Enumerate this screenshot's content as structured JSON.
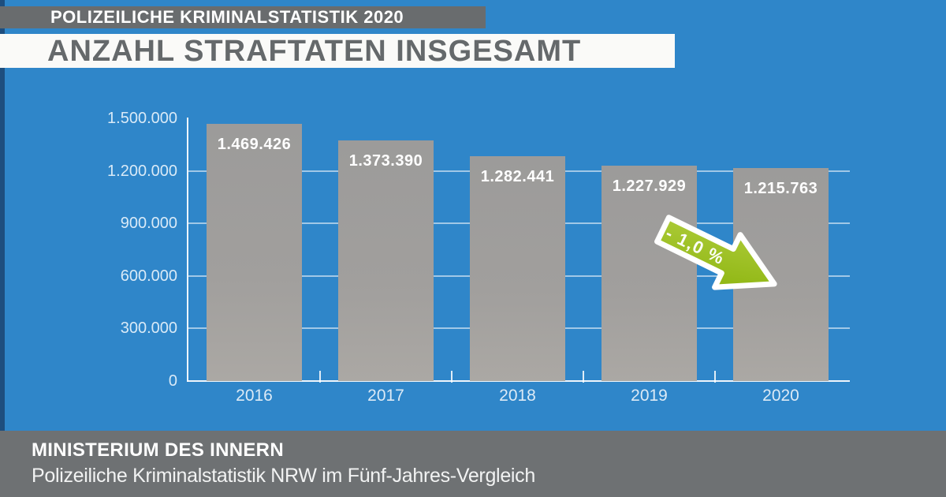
{
  "colors": {
    "background": "#2F86C9",
    "edge_accent": "#1E4E7E",
    "badge_bg": "#696C6E",
    "banner_bg": "#FAFAF8",
    "title_text": "#65696B",
    "bar_gray": "#9C9B9A",
    "axis_label": "#D9EAF7",
    "arrow_green": "#A3C41F",
    "footer_bg": "#6E7173"
  },
  "header": {
    "badge": "POLIZEILICHE KRIMINALSTATISTIK 2020",
    "title": "ANZAHL STRAFTATEN INSGESAMT"
  },
  "chart_data": {
    "type": "bar",
    "title": "Anzahl Straftaten insgesamt",
    "categories": [
      "2016",
      "2017",
      "2018",
      "2019",
      "2020"
    ],
    "values": [
      1469426,
      1373390,
      1282441,
      1227929,
      1215763
    ],
    "value_labels": [
      "1.469.426",
      "1.373.390",
      "1.282.441",
      "1.227.929",
      "1.215.763"
    ],
    "y_axis": {
      "tick_values": [
        0,
        300000,
        600000,
        900000,
        1200000,
        1500000
      ],
      "tick_labels": [
        "0",
        "300.000",
        "600.000",
        "900.000",
        "1.200.000",
        "1.500.000"
      ],
      "range": [
        0,
        1500000
      ]
    },
    "grid": true,
    "legend": false,
    "annotation": {
      "text": "- 1,0 %",
      "shape": "arrow-down-right",
      "color": "#A3C41F"
    }
  },
  "footer": {
    "title": "MINISTERIUM DES INNERN",
    "subtitle": "Polizeiliche Kriminalstatistik NRW im Fünf-Jahres-Vergleich",
    "logo": "nrw-coat-of-arms"
  }
}
